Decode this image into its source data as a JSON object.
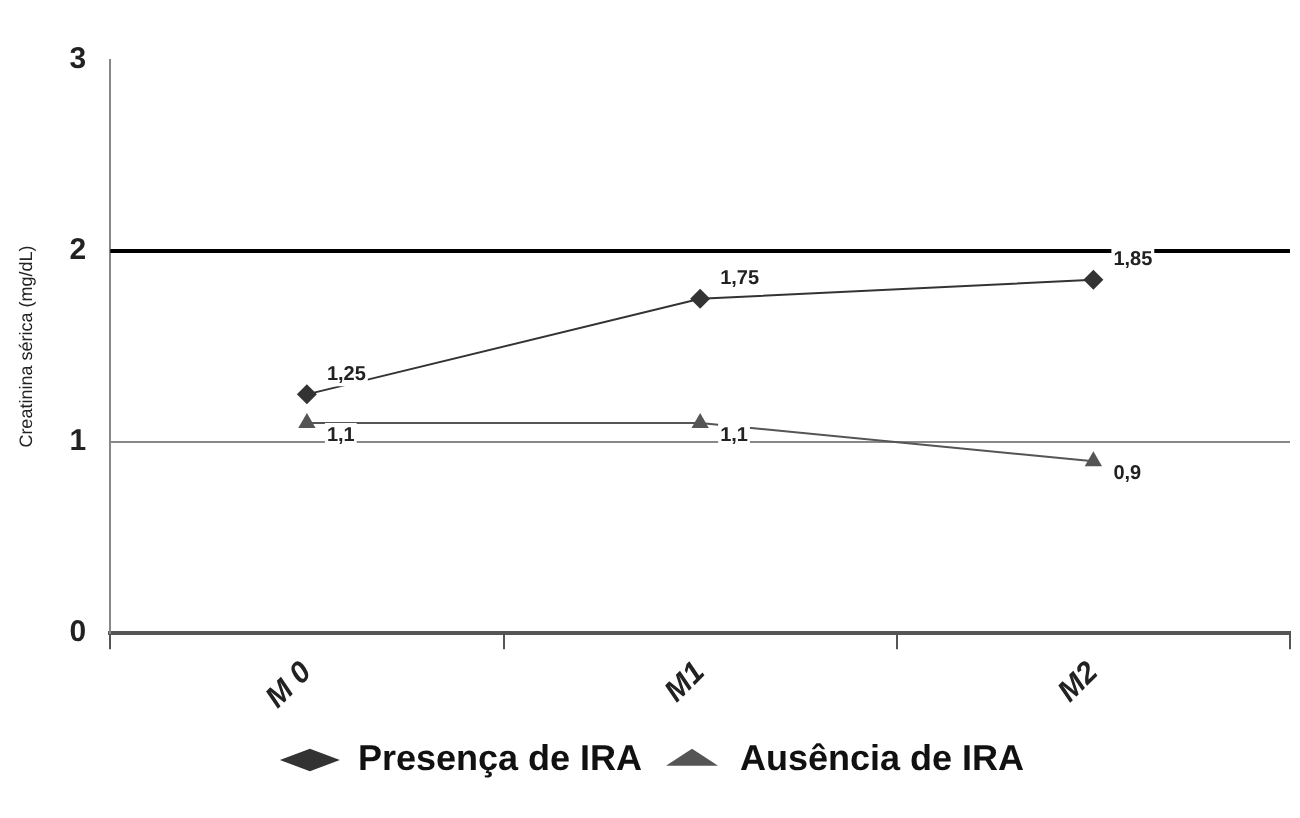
{
  "chart_data": {
    "type": "line",
    "ylabel": "Creatinina sérica (mg/dL)",
    "categories": [
      "M 0",
      "M1",
      "M2"
    ],
    "series": [
      {
        "name": "Presença de IRA",
        "color": "#333333",
        "marker": "diamond",
        "values": [
          1.25,
          1.75,
          1.85
        ],
        "value_labels": [
          "1,25",
          "1,75",
          "1,85"
        ]
      },
      {
        "name": "Ausência de IRA",
        "color": "#555555",
        "marker": "triangle",
        "values": [
          1.1,
          1.1,
          0.9
        ],
        "value_labels": [
          "1,1",
          "1,1",
          "0,9"
        ]
      }
    ],
    "ylim": [
      0,
      3
    ],
    "yticks": [
      0,
      1,
      2,
      3
    ],
    "legend": "bottom",
    "ref_lines": [
      {
        "axis": "y",
        "value": 1,
        "label": null,
        "color": "#888888"
      },
      {
        "axis": "y",
        "value": 2,
        "label": null,
        "color": "#000000"
      }
    ]
  }
}
